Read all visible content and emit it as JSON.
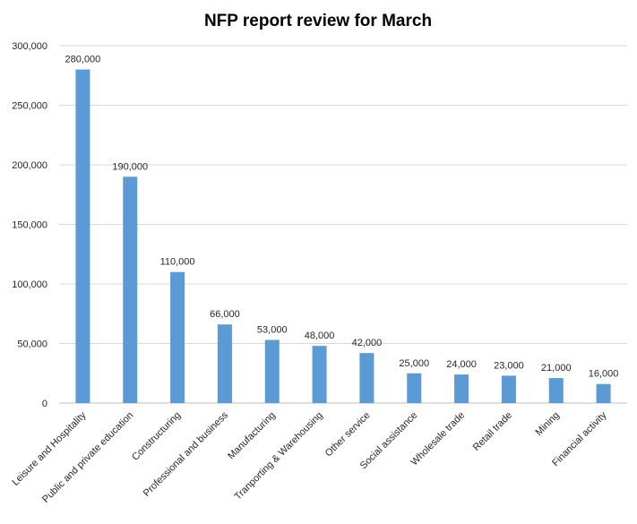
{
  "chart_data": {
    "type": "bar",
    "title": "NFP report review for March",
    "xlabel": "",
    "ylabel": "",
    "ylim": [
      0,
      300000
    ],
    "yticks": [
      0,
      50000,
      100000,
      150000,
      200000,
      250000,
      300000
    ],
    "ytick_labels": [
      "0",
      "50,000",
      "100,000",
      "150,000",
      "200,000",
      "250,000",
      "300,000"
    ],
    "grid": true,
    "legend": "none",
    "bar_color": "#5b9bd5",
    "categories": [
      "Leisure and Hospitality",
      "Public and private education",
      "Constructuring",
      "Professional and business",
      "Manufacturing",
      "Tranporting & Warehousing",
      "Other service",
      "Social assistance",
      "Wholesale trade",
      "Retail trade",
      "Mining",
      "Financial activity"
    ],
    "values": [
      280000,
      190000,
      110000,
      66000,
      53000,
      48000,
      42000,
      25000,
      24000,
      23000,
      21000,
      16000
    ],
    "data_labels": [
      "280,000",
      "190,000",
      "110,000",
      "66,000",
      "53,000",
      "48,000",
      "42,000",
      "25,000",
      "24,000",
      "23,000",
      "21,000",
      "16,000"
    ]
  }
}
